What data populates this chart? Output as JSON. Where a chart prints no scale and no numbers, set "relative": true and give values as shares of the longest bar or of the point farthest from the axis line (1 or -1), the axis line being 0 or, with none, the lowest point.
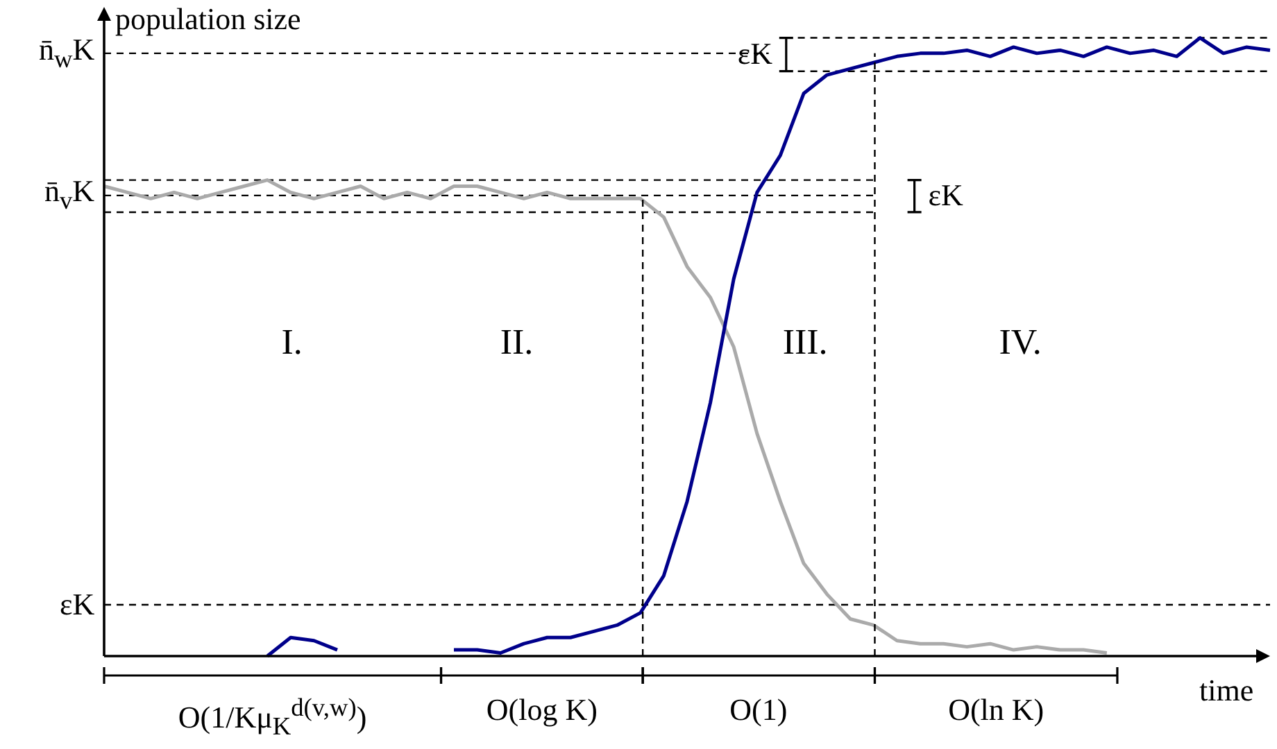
{
  "chart_data": {
    "type": "line",
    "relative": true,
    "ylabel": "population size",
    "xlabel": "time",
    "categories": [
      null,
      null,
      null,
      null,
      null,
      null,
      null,
      null,
      null,
      null,
      null,
      null,
      null,
      null,
      null,
      null,
      null,
      null,
      null,
      null,
      null,
      null,
      null,
      null,
      null,
      null,
      null,
      null,
      null,
      null,
      null,
      null,
      null,
      null,
      null,
      null,
      null,
      null,
      null,
      null,
      null,
      null,
      null,
      null,
      null,
      null,
      null,
      null,
      null,
      null,
      null
    ],
    "series": [
      {
        "color": "#aaaaaa",
        "values": [
          0.76,
          0.75,
          0.74,
          0.75,
          0.74,
          0.75,
          0.76,
          0.77,
          0.75,
          0.74,
          0.75,
          0.76,
          0.74,
          0.75,
          0.74,
          0.76,
          0.76,
          0.75,
          0.74,
          0.75,
          0.74,
          0.74,
          0.74,
          0.74,
          0.71,
          0.63,
          0.58,
          0.5,
          0.36,
          0.25,
          0.15,
          0.1,
          0.06,
          0.05,
          0.025,
          0.02,
          0.02,
          0.015,
          0.02,
          0.01,
          0.015,
          0.01,
          0.01,
          0.005,
          null,
          null,
          null,
          null,
          null,
          null,
          null
        ]
      },
      {
        "color": "#00008b",
        "values": [
          null,
          null,
          null,
          null,
          null,
          null,
          null,
          0.0,
          0.03,
          0.025,
          0.01,
          null,
          null,
          null,
          null,
          0.01,
          0.01,
          0.005,
          0.02,
          0.03,
          0.03,
          0.04,
          0.05,
          0.07,
          0.13,
          0.25,
          0.41,
          0.61,
          0.75,
          0.81,
          0.91,
          0.94,
          0.95,
          0.96,
          0.97,
          0.975,
          0.975,
          0.98,
          0.97,
          0.985,
          0.975,
          0.98,
          0.97,
          0.985,
          0.975,
          0.98,
          0.97,
          1.0,
          0.975,
          0.985,
          0.98
        ]
      }
    ],
    "ref_lines": [
      {
        "axis": "y",
        "value": 0.975,
        "label": "n̄$_{w}$K",
        "line_style": "dashed"
      },
      {
        "axis": "y",
        "value": 0.745,
        "label": "n̄$_{v}$K",
        "line_style": "dashed"
      },
      {
        "axis": "y",
        "value": 0.083,
        "label": "εK",
        "line_style": "dashed"
      },
      {
        "axis": "y",
        "value": 1.0,
        "line_style": "dashed"
      },
      {
        "axis": "y",
        "value": 0.946,
        "line_style": "dashed"
      },
      {
        "axis": "y",
        "value": 0.77,
        "line_style": "dashed"
      },
      {
        "axis": "y",
        "value": 0.718,
        "line_style": "dashed"
      }
    ],
    "annotations": [
      "I.",
      "II.",
      "III.",
      "IV.",
      "O(1/Kμ$_{K}$$^{d(v,w)}$)",
      "O(log K)",
      "O(1)",
      "O(ln K)",
      "εK",
      "εK"
    ]
  }
}
